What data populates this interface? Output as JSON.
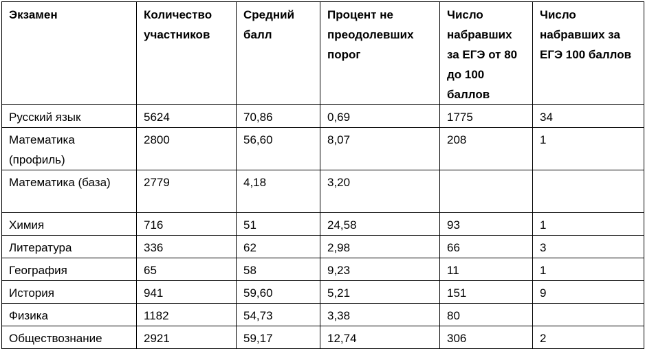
{
  "table": {
    "headers": [
      "Экзамен",
      "Количество участников",
      "Средний балл",
      "Процент не преодолевших порог",
      "Число набравших за ЕГЭ от 80 до 100 баллов",
      "Число набравших за ЕГЭ 100 баллов"
    ],
    "rows": [
      [
        "Русский язык",
        "5624",
        "70,86",
        "0,69",
        "1775",
        "34"
      ],
      [
        "Математика (профиль)",
        "2800",
        "56,60",
        "8,07",
        "208",
        "1"
      ],
      [
        "Математика (база)",
        "2779",
        "4,18",
        "3,20",
        "",
        ""
      ],
      [
        "Химия",
        "716",
        "51",
        "24,58",
        "93",
        "1"
      ],
      [
        "Литература",
        "336",
        "62",
        "2,98",
        "66",
        "3"
      ],
      [
        "География",
        "65",
        "58",
        "9,23",
        "11",
        "1"
      ],
      [
        "История",
        "941",
        "59,60",
        "5,21",
        "151",
        "9"
      ],
      [
        "Физика",
        "1182",
        "54,73",
        "3,38",
        "80",
        ""
      ],
      [
        "Обществознание",
        "2921",
        "59,17",
        "12,74",
        "306",
        "2"
      ]
    ]
  }
}
